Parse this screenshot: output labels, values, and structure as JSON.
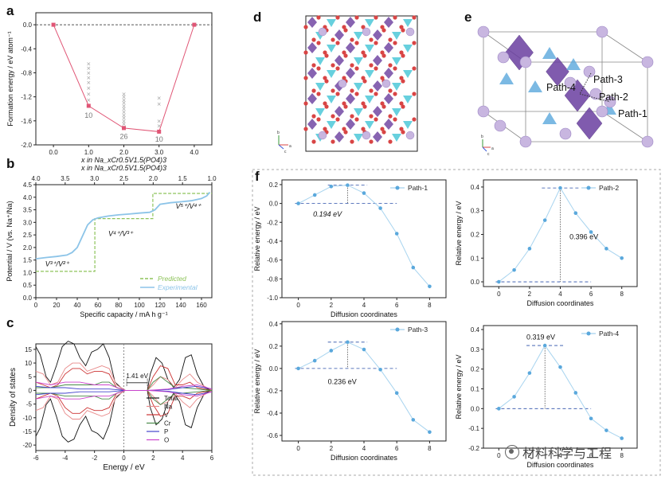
{
  "panels": {
    "a": "a",
    "b": "b",
    "c": "c",
    "d": "d",
    "e": "e",
    "f": "f"
  },
  "watermark": "材料科学与工程",
  "structure_d": {
    "axis_labels": [
      "a",
      "b",
      "c"
    ]
  },
  "structure_e": {
    "path_labels": [
      "Path-1",
      "Path-2",
      "Path-3",
      "Path-4"
    ],
    "axis_labels": [
      "a",
      "b",
      "c"
    ]
  },
  "chart_data": [
    {
      "id": "a",
      "type": "line",
      "title": "",
      "xlabel": "x in Na_xCr0.5V1.5(PO4)3",
      "xlabel_top": "x in Na_xCr0.5V1.5(PO4)3",
      "ylabel": "Formation energy / eV atom⁻¹",
      "xlim": [
        -0.5,
        4.5
      ],
      "ylim": [
        -2.0,
        0.2
      ],
      "xticks": [
        "0.0",
        "1.0",
        "2.0",
        "3.0",
        "4.0"
      ],
      "yticks": [
        "0.0",
        "-0.4",
        "-0.8",
        "-1.2",
        "-1.6",
        "-2.0"
      ],
      "hull": {
        "x": [
          0,
          1,
          2,
          3,
          4
        ],
        "y": [
          0.0,
          -1.35,
          -1.72,
          -1.78,
          0.0
        ]
      },
      "scatter": [
        {
          "x": 1,
          "y": [
            -0.65,
            -0.72,
            -0.8,
            -0.88,
            -0.96,
            -1.05,
            -1.15,
            -1.25
          ]
        },
        {
          "x": 2,
          "y": [
            -1.15,
            -1.2,
            -1.25,
            -1.3,
            -1.35,
            -1.4,
            -1.45,
            -1.5,
            -1.55,
            -1.6,
            -1.65,
            -1.7
          ]
        },
        {
          "x": 3,
          "y": [
            -1.22,
            -1.32,
            -1.6,
            -1.68
          ]
        }
      ],
      "annotations": [
        {
          "x": 1,
          "y": -1.55,
          "text": "10"
        },
        {
          "x": 2,
          "y": -1.9,
          "text": "26"
        },
        {
          "x": 3,
          "y": -1.95,
          "text": "10"
        }
      ]
    },
    {
      "id": "b",
      "type": "line",
      "xlabel": "Specific capacity / mA h g⁻¹",
      "ylabel": "Potential / V (vs. Na⁺/Na)",
      "xlim": [
        0,
        170
      ],
      "ylim": [
        0.0,
        4.5
      ],
      "xticks": [
        "0",
        "20",
        "40",
        "60",
        "80",
        "100",
        "120",
        "140",
        "160"
      ],
      "yticks": [
        "0.0",
        "0.5",
        "1.0",
        "1.5",
        "2.0",
        "2.5",
        "3.0",
        "3.5",
        "4.0",
        "4.5"
      ],
      "top_ticks": [
        "4.0",
        "3.5",
        "3.0",
        "2.5",
        "2.0",
        "1.5",
        "1.0"
      ],
      "series": [
        {
          "name": "Predicted",
          "color": "#8dc35a",
          "dashed": true,
          "x": [
            0,
            57,
            57,
            113,
            113,
            170
          ],
          "y": [
            1.05,
            1.05,
            3.15,
            3.15,
            4.15,
            4.15
          ]
        },
        {
          "name": "Experimental",
          "color": "#8cc4e8",
          "dashed": false,
          "x": [
            0,
            10,
            20,
            30,
            35,
            40,
            45,
            50,
            55,
            60,
            70,
            80,
            90,
            100,
            110,
            115,
            120,
            130,
            140,
            150,
            160,
            165,
            168
          ],
          "y": [
            1.55,
            1.6,
            1.64,
            1.7,
            1.8,
            2.0,
            2.45,
            2.9,
            3.1,
            3.18,
            3.25,
            3.3,
            3.33,
            3.37,
            3.4,
            3.5,
            3.72,
            3.78,
            3.82,
            3.86,
            3.95,
            4.05,
            4.2
          ]
        }
      ],
      "annotations": [
        {
          "x": 9,
          "y": 1.25,
          "text": "V³⁺/V²⁺"
        },
        {
          "x": 70,
          "y": 2.45,
          "text": "V⁴⁺/V³⁺"
        },
        {
          "x": 135,
          "y": 3.55,
          "text": "V⁵⁺/V⁴⁺"
        }
      ]
    },
    {
      "id": "c",
      "type": "line",
      "xlabel": "Energy / eV",
      "ylabel": "Density of states",
      "xlim": [
        -6,
        6
      ],
      "ylim": [
        -22,
        17
      ],
      "xticks": [
        "-6",
        "-4",
        "-2",
        "0",
        "2",
        "4",
        "6"
      ],
      "yticks": [
        "15",
        "10",
        "5",
        "0",
        "-5",
        "-10",
        "-15",
        "-20"
      ],
      "gap_label": "1.41 eV",
      "gap": [
        0.2,
        1.61
      ],
      "series": [
        {
          "name": "Total",
          "color": "#111111",
          "x": [
            -6,
            -5.7,
            -5.3,
            -5,
            -4.6,
            -4.2,
            -3.8,
            -3.4,
            -3,
            -2.6,
            -2.2,
            -1.8,
            -1.4,
            -1,
            -0.6,
            -0.2,
            0.1,
            0.3,
            1.0,
            1.6,
            1.8,
            2.2,
            2.6,
            3.0,
            3.4,
            3.8,
            4.2,
            4.6,
            5,
            5.5,
            6
          ],
          "y": [
            16,
            13,
            5,
            3,
            9,
            16,
            18,
            17,
            12,
            9,
            14,
            15,
            17,
            12,
            3,
            1,
            0,
            0,
            0,
            0,
            6,
            12,
            10,
            4,
            1,
            4,
            12,
            13,
            6,
            1,
            0
          ]
        },
        {
          "name": "Na",
          "color": "#e88a8a",
          "x": [
            -6,
            -5.5,
            -5,
            -4.5,
            -4,
            -3.5,
            -3,
            -2.5,
            -2,
            -1.5,
            -1,
            -0.5,
            0.1,
            1.6,
            2,
            2.5,
            3,
            3.5,
            4,
            4.5,
            5,
            6
          ],
          "y": [
            7,
            6,
            2,
            3,
            8,
            10,
            10,
            7,
            8,
            9,
            8,
            2,
            0,
            0,
            2,
            5,
            4,
            1,
            4,
            6,
            3,
            0
          ]
        },
        {
          "name": "V",
          "color": "#cc3333",
          "x": [
            -6,
            -5.5,
            -5,
            -4.5,
            -4,
            -3.5,
            -3,
            -2.5,
            -2,
            -1.5,
            -1,
            -0.5,
            0.1,
            1.6,
            2,
            2.5,
            3,
            3.5,
            4,
            4.5,
            5,
            6
          ],
          "y": [
            3,
            2,
            1,
            2,
            6,
            8,
            8,
            6,
            7,
            7,
            6,
            1,
            0,
            0,
            5,
            9,
            8,
            2,
            2,
            3,
            1,
            0
          ]
        },
        {
          "name": "Cr",
          "color": "#4a8a4a",
          "x": [
            -6,
            -5,
            -4,
            -3,
            -2,
            -1.5,
            -1,
            -0.5,
            0.1,
            1.6,
            2,
            2.5,
            3,
            3.5,
            4,
            5,
            6
          ],
          "y": [
            1,
            1,
            2,
            2,
            2,
            3,
            3,
            1,
            0,
            0,
            3,
            5,
            3,
            1,
            1,
            0.5,
            0
          ]
        },
        {
          "name": "P",
          "color": "#4444cc",
          "x": [
            -6,
            -5,
            -4,
            -3,
            -2,
            -1,
            0.1,
            1.6,
            3,
            4,
            5,
            6
          ],
          "y": [
            1.5,
            1,
            1,
            0.5,
            0.5,
            0.5,
            0,
            0,
            0.3,
            1,
            1.5,
            0.5
          ]
        },
        {
          "name": "O",
          "color": "#cc44cc",
          "x": [
            -6,
            -5,
            -4,
            -3,
            -2,
            -1,
            0.1,
            1.6,
            3,
            4,
            5,
            6
          ],
          "y": [
            3,
            2,
            3,
            3,
            2,
            2,
            0,
            0,
            0.5,
            1.5,
            2,
            0.5
          ]
        }
      ]
    },
    {
      "id": "f1",
      "type": "line",
      "title": "Path-1",
      "xlabel": "Diffusion coordinates",
      "ylabel": "Relative energy / eV",
      "xlim": [
        -1,
        9
      ],
      "ylim": [
        -1.0,
        0.25
      ],
      "xticks": [
        "0",
        "2",
        "4",
        "6",
        "8"
      ],
      "yticks": [
        "0.2",
        "0.0",
        "-0.2",
        "-0.4",
        "-0.6",
        "-0.8",
        "-1.0"
      ],
      "x": [
        0,
        1,
        2,
        3,
        4,
        5,
        6,
        7,
        8
      ],
      "y": [
        0.0,
        0.09,
        0.18,
        0.194,
        0.11,
        -0.05,
        -0.32,
        -0.68,
        -0.88
      ],
      "barrier_label": "0.194 eV",
      "barrier": 0.194,
      "peak_x": 3
    },
    {
      "id": "f2",
      "type": "line",
      "title": "Path-2",
      "xlabel": "Diffusion coordinates",
      "ylabel": "Relative energy / eV",
      "xlim": [
        -1,
        9
      ],
      "ylim": [
        -0.02,
        0.43
      ],
      "xticks": [
        "0",
        "2",
        "4",
        "6",
        "8"
      ],
      "yticks": [
        "0.4",
        "0.3",
        "0.2",
        "0.1",
        "0.0"
      ],
      "x": [
        0,
        1,
        2,
        3,
        4,
        5,
        6,
        7,
        8
      ],
      "y": [
        0.0,
        0.05,
        0.14,
        0.26,
        0.396,
        0.29,
        0.21,
        0.14,
        0.1
      ],
      "barrier_label": "0.396 eV",
      "barrier": 0.396,
      "peak_x": 4
    },
    {
      "id": "f3",
      "type": "line",
      "title": "Path-3",
      "xlabel": "Diffusion coordinates",
      "ylabel": "Relative energy / eV",
      "xlim": [
        -1,
        9
      ],
      "ylim": [
        -0.65,
        0.42
      ],
      "xticks": [
        "0",
        "2",
        "4",
        "6",
        "8"
      ],
      "yticks": [
        "0.4",
        "0.2",
        "0.0",
        "-0.2",
        "-0.4",
        "-0.6"
      ],
      "x": [
        0,
        1,
        2,
        3,
        4,
        5,
        6,
        7,
        8
      ],
      "y": [
        0.0,
        0.07,
        0.16,
        0.236,
        0.17,
        -0.01,
        -0.22,
        -0.46,
        -0.57
      ],
      "barrier_label": "0.236 eV",
      "barrier": 0.236,
      "peak_x": 3
    },
    {
      "id": "f4",
      "type": "line",
      "title": "Path-4",
      "xlabel": "Diffusion coordinates",
      "ylabel": "Relative energy / eV",
      "xlim": [
        -1,
        9
      ],
      "ylim": [
        -0.2,
        0.42
      ],
      "xticks": [
        "0",
        "2",
        "4",
        "6",
        "8"
      ],
      "yticks": [
        "0.4",
        "0.3",
        "0.2",
        "0.1",
        "0.0",
        "-0.1",
        "-0.2"
      ],
      "x": [
        0,
        1,
        2,
        3,
        4,
        5,
        6,
        7,
        8
      ],
      "y": [
        0.0,
        0.06,
        0.18,
        0.319,
        0.21,
        0.08,
        -0.05,
        -0.11,
        -0.15
      ],
      "barrier_label": "0.319 eV",
      "barrier": 0.319,
      "peak_x": 3
    }
  ]
}
